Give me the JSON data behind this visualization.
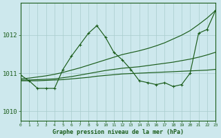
{
  "bg_color": "#cde8ed",
  "grid_color": "#a8cccc",
  "line_color": "#1a5c1a",
  "title": "Graphe pression niveau de la mer (hPa)",
  "xlim": [
    0,
    23
  ],
  "ylim": [
    1009.75,
    1012.85
  ],
  "yticks": [
    1010,
    1011,
    1012
  ],
  "xticks": [
    0,
    1,
    2,
    3,
    4,
    5,
    6,
    7,
    8,
    9,
    10,
    11,
    12,
    13,
    14,
    15,
    16,
    17,
    18,
    19,
    20,
    21,
    22,
    23
  ],
  "hours": [
    0,
    1,
    2,
    3,
    4,
    5,
    6,
    7,
    8,
    9,
    10,
    11,
    12,
    13,
    14,
    15,
    16,
    17,
    18,
    19,
    20,
    21,
    22,
    23
  ],
  "main_series": [
    1010.95,
    1010.8,
    1010.6,
    1010.6,
    1010.6,
    1011.1,
    1011.45,
    1011.75,
    1012.05,
    1012.25,
    1011.95,
    1011.55,
    1011.35,
    1011.1,
    1010.8,
    1010.75,
    1010.7,
    1010.75,
    1010.65,
    1010.7,
    1011.0,
    1012.05,
    1012.15,
    1012.65
  ],
  "smooth_upper": [
    1010.85,
    1010.87,
    1010.9,
    1010.93,
    1010.97,
    1011.02,
    1011.08,
    1011.14,
    1011.21,
    1011.28,
    1011.35,
    1011.42,
    1011.49,
    1011.54,
    1011.59,
    1011.65,
    1011.72,
    1011.8,
    1011.9,
    1012.0,
    1012.12,
    1012.28,
    1012.45,
    1012.65
  ],
  "smooth_mid": [
    1010.82,
    1010.82,
    1010.83,
    1010.84,
    1010.85,
    1010.88,
    1010.91,
    1010.95,
    1010.99,
    1011.03,
    1011.07,
    1011.1,
    1011.13,
    1011.15,
    1011.17,
    1011.2,
    1011.23,
    1011.26,
    1011.29,
    1011.33,
    1011.37,
    1011.42,
    1011.48,
    1011.55
  ],
  "smooth_lower": [
    1010.8,
    1010.8,
    1010.8,
    1010.81,
    1010.82,
    1010.83,
    1010.85,
    1010.87,
    1010.89,
    1010.92,
    1010.94,
    1010.96,
    1010.98,
    1010.99,
    1011.0,
    1011.01,
    1011.02,
    1011.03,
    1011.04,
    1011.05,
    1011.06,
    1011.07,
    1011.08,
    1011.1
  ]
}
